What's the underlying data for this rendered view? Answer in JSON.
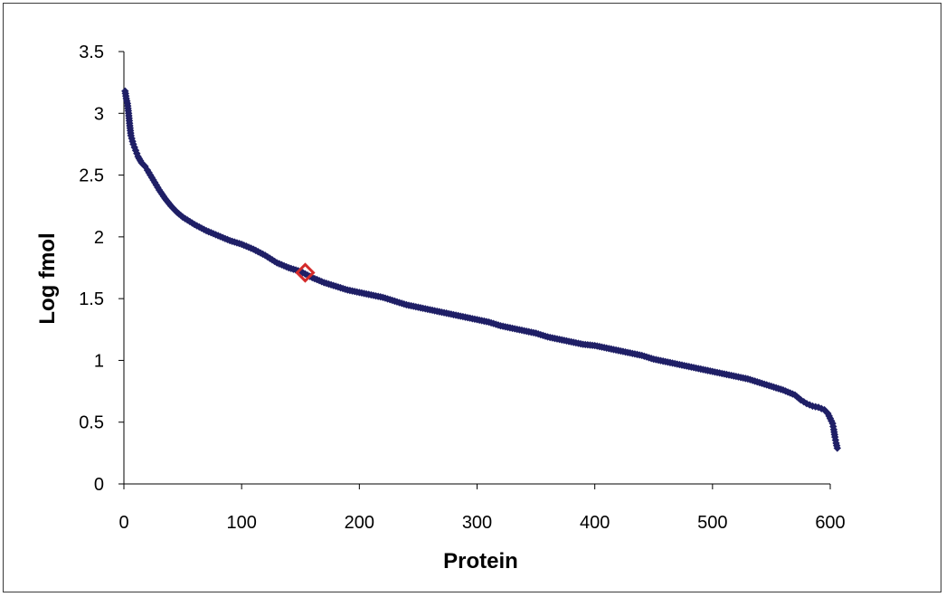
{
  "chart_data": {
    "type": "scatter",
    "title": "",
    "xlabel": "Protein",
    "ylabel": "Log fmol",
    "xlim": [
      0,
      600
    ],
    "ylim": [
      0,
      3.5
    ],
    "x_ticks": [
      0,
      100,
      200,
      300,
      400,
      500,
      600
    ],
    "y_ticks": [
      0,
      0.5,
      1,
      1.5,
      2,
      2.5,
      3,
      3.5
    ],
    "x_tick_labels": [
      "0",
      "100",
      "200",
      "300",
      "400",
      "500",
      "600"
    ],
    "y_tick_labels": [
      "0",
      "0.5",
      "1",
      "1.5",
      "2",
      "2.5",
      "3",
      "3.5"
    ],
    "grid": false,
    "legend": "none",
    "colors": {
      "series": "#1f1f66",
      "highlight": "#d42a2a"
    },
    "series": [
      {
        "x": [
          1,
          2,
          3,
          4,
          5,
          6,
          8,
          10,
          12,
          15,
          18,
          20,
          25,
          30,
          35,
          40,
          45,
          50,
          60,
          70,
          80,
          90,
          100,
          110,
          120,
          130,
          140,
          150,
          160,
          170,
          180,
          190,
          200,
          210,
          220,
          230,
          240,
          250,
          260,
          270,
          280,
          290,
          300,
          310,
          320,
          330,
          340,
          350,
          360,
          370,
          380,
          390,
          400,
          410,
          420,
          430,
          440,
          450,
          460,
          470,
          480,
          490,
          500,
          510,
          520,
          530,
          540,
          550,
          560,
          570,
          575,
          580,
          585,
          590,
          595,
          598,
          600,
          602,
          603,
          604,
          605,
          606
        ],
        "y": [
          3.18,
          3.12,
          3.08,
          3.0,
          2.9,
          2.82,
          2.75,
          2.7,
          2.65,
          2.6,
          2.57,
          2.54,
          2.46,
          2.38,
          2.31,
          2.25,
          2.2,
          2.16,
          2.1,
          2.05,
          2.01,
          1.97,
          1.94,
          1.9,
          1.85,
          1.79,
          1.75,
          1.72,
          1.67,
          1.63,
          1.6,
          1.57,
          1.55,
          1.53,
          1.51,
          1.48,
          1.45,
          1.43,
          1.41,
          1.39,
          1.37,
          1.35,
          1.33,
          1.31,
          1.28,
          1.26,
          1.24,
          1.22,
          1.19,
          1.17,
          1.15,
          1.13,
          1.12,
          1.1,
          1.08,
          1.06,
          1.04,
          1.01,
          0.99,
          0.97,
          0.95,
          0.93,
          0.91,
          0.89,
          0.87,
          0.85,
          0.82,
          0.79,
          0.76,
          0.72,
          0.68,
          0.65,
          0.63,
          0.62,
          0.6,
          0.57,
          0.53,
          0.49,
          0.44,
          0.38,
          0.33,
          0.29
        ]
      }
    ],
    "highlight_point": {
      "x": 154,
      "y": 1.71
    }
  }
}
